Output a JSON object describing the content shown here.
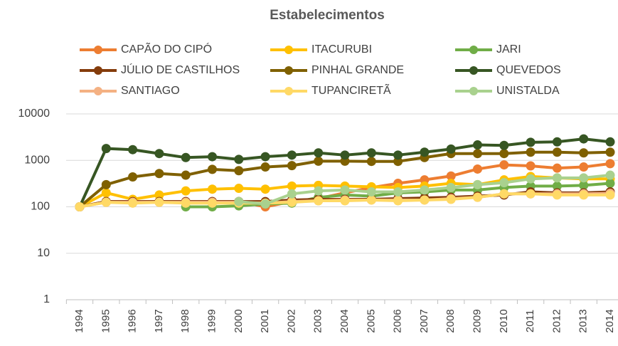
{
  "chart_data": {
    "type": "line",
    "title": "Estabelecimentos",
    "categories": [
      "1994",
      "1995",
      "1996",
      "1997",
      "1998",
      "1999",
      "2000",
      "2001",
      "2002",
      "2003",
      "2004",
      "2005",
      "2006",
      "2007",
      "2008",
      "2009",
      "2010",
      "2011",
      "2012",
      "2013",
      "2014"
    ],
    "log_scale": true,
    "ylim": [
      1,
      10000
    ],
    "yticks": [
      1,
      10,
      100,
      1000,
      10000
    ],
    "grid": true,
    "legend": "top",
    "series": [
      {
        "name": "CAPÃO DO CIPÓ",
        "color": "#ed7d31",
        "values": [
          100,
          130,
          130,
          130,
          130,
          130,
          130,
          100,
          130,
          150,
          200,
          260,
          320,
          380,
          460,
          650,
          800,
          760,
          680,
          720,
          850
        ]
      },
      {
        "name": "ITACURUBI",
        "color": "#ffc000",
        "values": [
          100,
          200,
          145,
          180,
          220,
          240,
          250,
          240,
          280,
          290,
          280,
          270,
          260,
          280,
          320,
          300,
          380,
          450,
          420,
          400,
          400
        ]
      },
      {
        "name": "JARI",
        "color": "#70ad47",
        "values": [
          null,
          null,
          null,
          null,
          100,
          100,
          105,
          115,
          120,
          160,
          180,
          170,
          200,
          210,
          230,
          230,
          260,
          280,
          280,
          290,
          320
        ]
      },
      {
        "name": "JÚLIO DE CASTILHOS",
        "color": "#843c0c",
        "values": [
          100,
          130,
          130,
          130,
          130,
          130,
          130,
          130,
          140,
          145,
          145,
          145,
          150,
          155,
          160,
          170,
          180,
          210,
          200,
          200,
          210
        ]
      },
      {
        "name": "PINHAL GRANDE",
        "color": "#7f6000",
        "values": [
          100,
          300,
          440,
          520,
          480,
          640,
          600,
          720,
          770,
          960,
          960,
          950,
          950,
          1150,
          1400,
          1400,
          1400,
          1500,
          1500,
          1450,
          1500
        ]
      },
      {
        "name": "QUEVEDOS",
        "color": "#375623",
        "values": [
          100,
          1800,
          1700,
          1400,
          1150,
          1200,
          1050,
          1200,
          1300,
          1450,
          1300,
          1450,
          1300,
          1500,
          1750,
          2150,
          2100,
          2450,
          2500,
          2900,
          2500
        ]
      },
      {
        "name": "SANTIAGO",
        "color": "#f4b183",
        "values": [
          100,
          125,
          125,
          125,
          125,
          125,
          125,
          120,
          130,
          135,
          140,
          140,
          140,
          140,
          150,
          160,
          190,
          190,
          190,
          190,
          195
        ]
      },
      {
        "name": "TUPANCIRETÃ",
        "color": "#ffd966",
        "values": [
          100,
          125,
          120,
          125,
          120,
          120,
          120,
          120,
          125,
          135,
          135,
          140,
          135,
          140,
          145,
          160,
          190,
          190,
          180,
          180,
          180
        ]
      },
      {
        "name": "UNISTALDA",
        "color": "#a9d18e",
        "values": [
          null,
          null,
          null,
          null,
          null,
          null,
          130,
          115,
          190,
          220,
          230,
          210,
          210,
          230,
          260,
          300,
          330,
          400,
          420,
          420,
          480
        ]
      }
    ]
  }
}
